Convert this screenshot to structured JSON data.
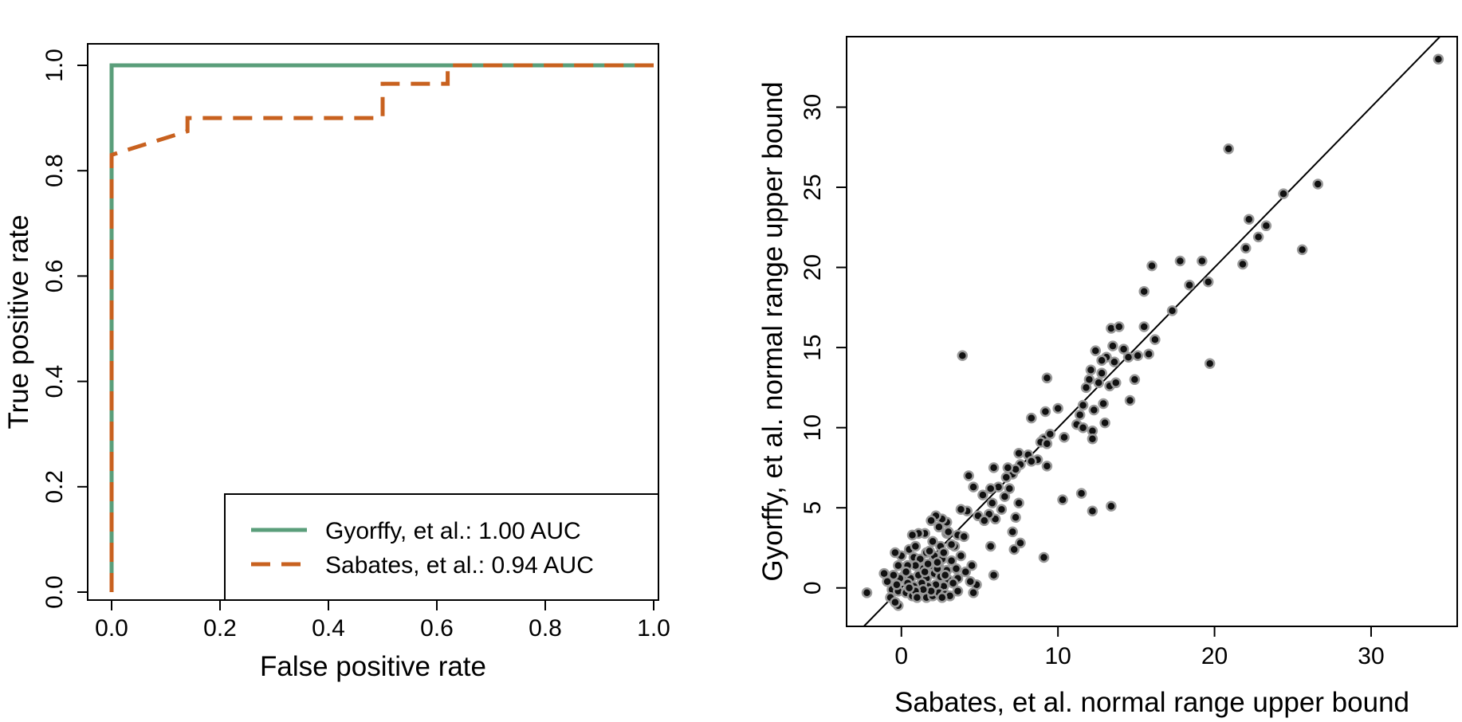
{
  "colors": {
    "green": "#5a9e7a",
    "orange": "#c8611f",
    "point_fill": "#111111",
    "point_stroke": "#9a9a9a",
    "axis": "#000000"
  },
  "chart_data": [
    {
      "type": "line",
      "xlabel": "False positive rate",
      "ylabel": "True positive rate",
      "xlim": [
        0,
        1
      ],
      "ylim": [
        0,
        1
      ],
      "x_ticks": [
        "0.0",
        "0.2",
        "0.4",
        "0.6",
        "0.8",
        "1.0"
      ],
      "y_ticks": [
        "0.0",
        "0.2",
        "0.4",
        "0.6",
        "0.8",
        "1.0"
      ],
      "grid": false,
      "legend_position": "bottom-right",
      "series": [
        {
          "name": "Gyorffy, et al.: 1.00 AUC",
          "color": "#5a9e7a",
          "dash": "solid",
          "points": [
            [
              0,
              0
            ],
            [
              0,
              1
            ],
            [
              1,
              1
            ]
          ]
        },
        {
          "name": "Sabates, et al.: 0.94 AUC",
          "color": "#c8611f",
          "dash": "dashed",
          "points": [
            [
              0,
              0
            ],
            [
              0,
              0.83
            ],
            [
              0.015,
              0.835
            ],
            [
              0.14,
              0.875
            ],
            [
              0.14,
              0.9
            ],
            [
              0.5,
              0.9
            ],
            [
              0.5,
              0.965
            ],
            [
              0.62,
              0.965
            ],
            [
              0.62,
              1
            ],
            [
              1,
              1
            ]
          ]
        }
      ]
    },
    {
      "type": "scatter",
      "xlabel": "Sabates, et al. normal range upper bound",
      "ylabel": "Gyorffy, et al. normal range upper bound",
      "xlim": [
        -3.5,
        35.5
      ],
      "ylim": [
        -2.4,
        34.4
      ],
      "x_ticks": [
        "0",
        "10",
        "20",
        "30"
      ],
      "y_ticks": [
        "0",
        "5",
        "10",
        "15",
        "20",
        "25",
        "30"
      ],
      "grid": false,
      "reference_line": "y = x",
      "points": [
        [
          34.3,
          33.0
        ],
        [
          20.9,
          27.4
        ],
        [
          26.6,
          25.2
        ],
        [
          24.4,
          24.6
        ],
        [
          22.2,
          23.0
        ],
        [
          23.3,
          22.6
        ],
        [
          22.8,
          21.9
        ],
        [
          25.6,
          21.1
        ],
        [
          22.0,
          21.2
        ],
        [
          21.8,
          20.2
        ],
        [
          19.2,
          20.4
        ],
        [
          17.8,
          20.4
        ],
        [
          16.0,
          20.1
        ],
        [
          19.6,
          19.1
        ],
        [
          18.4,
          18.9
        ],
        [
          19.7,
          14.0
        ],
        [
          15.5,
          18.5
        ],
        [
          17.3,
          17.3
        ],
        [
          16.2,
          15.5
        ],
        [
          15.5,
          16.3
        ],
        [
          13.4,
          16.2
        ],
        [
          13.9,
          16.3
        ],
        [
          13.5,
          15.1
        ],
        [
          15.8,
          14.6
        ],
        [
          15.1,
          14.5
        ],
        [
          14.2,
          14.9
        ],
        [
          12.4,
          14.8
        ],
        [
          13.6,
          14.1
        ],
        [
          13.1,
          14.4
        ],
        [
          12.8,
          13.4
        ],
        [
          14.5,
          14.4
        ],
        [
          12.8,
          14.2
        ],
        [
          14.9,
          13.0
        ],
        [
          12.1,
          13.6
        ],
        [
          12.6,
          12.8
        ],
        [
          13.3,
          12.6
        ],
        [
          14.6,
          11.7
        ],
        [
          12.0,
          13.0
        ],
        [
          11.8,
          12.5
        ],
        [
          12.9,
          11.5
        ],
        [
          13.7,
          12.8
        ],
        [
          11.6,
          11.4
        ],
        [
          12.3,
          11.1
        ],
        [
          13.0,
          10.3
        ],
        [
          11.4,
          10.8
        ],
        [
          11.2,
          10.2
        ],
        [
          12.2,
          9.8
        ],
        [
          11.6,
          10.0
        ],
        [
          9.3,
          13.1
        ],
        [
          12.2,
          9.3
        ],
        [
          10.0,
          11.2
        ],
        [
          9.2,
          11.0
        ],
        [
          10.4,
          9.4
        ],
        [
          8.3,
          10.6
        ],
        [
          9.1,
          9.3
        ],
        [
          9.5,
          9.6
        ],
        [
          8.9,
          9.1
        ],
        [
          9.3,
          9.0
        ],
        [
          8.1,
          8.3
        ],
        [
          8.7,
          8.0
        ],
        [
          9.3,
          7.6
        ],
        [
          8.3,
          7.9
        ],
        [
          7.5,
          8.4
        ],
        [
          7.6,
          7.7
        ],
        [
          7.1,
          7.1
        ],
        [
          7.3,
          7.4
        ],
        [
          6.8,
          7.5
        ],
        [
          5.9,
          7.5
        ],
        [
          6.7,
          6.9
        ],
        [
          6.2,
          6.3
        ],
        [
          5.7,
          6.2
        ],
        [
          6.9,
          6.2
        ],
        [
          6.6,
          5.7
        ],
        [
          5.8,
          5.3
        ],
        [
          5.2,
          5.8
        ],
        [
          6.4,
          4.9
        ],
        [
          4.6,
          6.3
        ],
        [
          4.3,
          7.0
        ],
        [
          7.5,
          5.3
        ],
        [
          7.3,
          4.4
        ],
        [
          6.0,
          4.3
        ],
        [
          5.6,
          4.6
        ],
        [
          4.9,
          4.5
        ],
        [
          5.3,
          4.2
        ],
        [
          4.2,
          4.8
        ],
        [
          3.8,
          4.9
        ],
        [
          3.9,
          14.5
        ],
        [
          10.3,
          5.5
        ],
        [
          11.5,
          5.9
        ],
        [
          12.2,
          4.8
        ],
        [
          13.4,
          5.1
        ],
        [
          9.1,
          1.9
        ],
        [
          7.1,
          3.5
        ],
        [
          7.6,
          2.8
        ],
        [
          7.2,
          2.4
        ],
        [
          5.7,
          2.6
        ],
        [
          5.9,
          0.8
        ],
        [
          4.8,
          0.2
        ],
        [
          4.6,
          -0.3
        ],
        [
          3.6,
          0.6
        ],
        [
          3.4,
          2.6
        ],
        [
          2.9,
          4.1
        ],
        [
          2.6,
          4.3
        ],
        [
          2.2,
          4.5
        ],
        [
          1.9,
          4.2
        ],
        [
          2.4,
          3.8
        ],
        [
          2.9,
          3.4
        ],
        [
          3.6,
          3.3
        ],
        [
          3.2,
          2.7
        ],
        [
          2.5,
          2.6
        ],
        [
          2.0,
          2.9
        ],
        [
          1.5,
          3.4
        ],
        [
          1.1,
          3.4
        ],
        [
          0.7,
          3.3
        ],
        [
          0.5,
          2.4
        ],
        [
          0.8,
          1.9
        ],
        [
          1.2,
          1.8
        ],
        [
          1.6,
          2.2
        ],
        [
          2.1,
          2.0
        ],
        [
          2.6,
          1.8
        ],
        [
          3.2,
          1.7
        ],
        [
          3.8,
          2.0
        ],
        [
          4.5,
          1.4
        ],
        [
          4.1,
          1.0
        ],
        [
          3.5,
          1.2
        ],
        [
          2.9,
          1.1
        ],
        [
          2.4,
          1.3
        ],
        [
          1.9,
          1.4
        ],
        [
          1.4,
          1.2
        ],
        [
          0.9,
          1.4
        ],
        [
          0.4,
          1.4
        ],
        [
          0.0,
          2.0
        ],
        [
          -0.4,
          2.2
        ],
        [
          -0.2,
          1.4
        ],
        [
          0.2,
          0.8
        ],
        [
          0.6,
          0.6
        ],
        [
          1.1,
          0.8
        ],
        [
          1.6,
          0.6
        ],
        [
          2.1,
          0.9
        ],
        [
          2.5,
          0.7
        ],
        [
          3.0,
          0.5
        ],
        [
          3.3,
          0.3
        ],
        [
          2.7,
          0.1
        ],
        [
          2.2,
          0.2
        ],
        [
          1.7,
          0.1
        ],
        [
          1.3,
          0.3
        ],
        [
          0.8,
          0.1
        ],
        [
          0.4,
          0.3
        ],
        [
          -0.1,
          0.6
        ],
        [
          -0.5,
          0.8
        ],
        [
          -0.9,
          0.4
        ],
        [
          -1.1,
          0.9
        ],
        [
          -0.6,
          -0.1
        ],
        [
          -0.2,
          -0.2
        ],
        [
          0.3,
          -0.3
        ],
        [
          0.7,
          -0.5
        ],
        [
          1.2,
          -0.4
        ],
        [
          1.6,
          -0.6
        ],
        [
          2.0,
          -0.5
        ],
        [
          2.4,
          -0.3
        ],
        [
          2.8,
          -0.4
        ],
        [
          3.1,
          -0.5
        ],
        [
          1.9,
          -0.2
        ],
        [
          1.4,
          -0.1
        ],
        [
          0.9,
          -0.2
        ],
        [
          0.5,
          0.0
        ],
        [
          -0.3,
          0.2
        ],
        [
          -0.7,
          -0.6
        ],
        [
          -0.2,
          -1.1
        ],
        [
          -2.2,
          -0.3
        ],
        [
          -0.4,
          -0.9
        ],
        [
          1.5,
          1.0
        ],
        [
          2.3,
          1.2
        ],
        [
          1.8,
          2.3
        ],
        [
          2.7,
          2.2
        ],
        [
          3.0,
          3.5
        ],
        [
          4.0,
          3.2
        ],
        [
          0.9,
          2.6
        ],
        [
          0.3,
          1.0
        ],
        [
          1.0,
          -0.6
        ],
        [
          2.6,
          -0.6
        ],
        [
          3.6,
          -0.2
        ],
        [
          4.4,
          0.4
        ],
        [
          1.7,
          1.5
        ],
        [
          2.3,
          1.6
        ],
        [
          2.8,
          0.8
        ]
      ]
    }
  ]
}
